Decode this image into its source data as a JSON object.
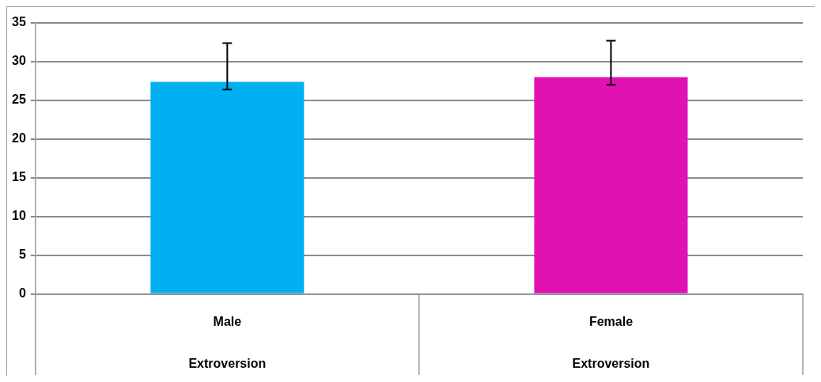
{
  "chart_data": {
    "type": "bar",
    "categories": [
      "Male",
      "Female"
    ],
    "values": [
      27.4,
      28.0
    ],
    "colors": [
      "#00b0f0",
      "#e012b4"
    ],
    "errors": [
      [
        26.4,
        32.4
      ],
      [
        27.0,
        32.7
      ]
    ],
    "ylim": [
      0,
      35
    ],
    "yticks": [
      0,
      5,
      10,
      15,
      20,
      25,
      30,
      35
    ],
    "grid": "y",
    "legend": false,
    "annotations": [
      "Extroversion",
      "Extroversion"
    ]
  }
}
